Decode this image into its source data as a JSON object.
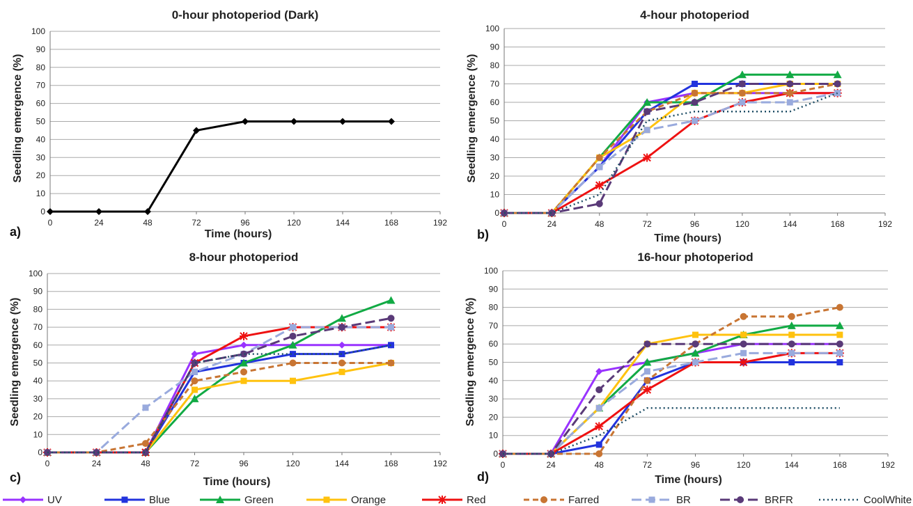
{
  "legend": {
    "items": [
      {
        "name": "UV",
        "color": "#9933ff",
        "dash": "solid",
        "marker": "diamond"
      },
      {
        "name": "Blue",
        "color": "#2233dd",
        "dash": "solid",
        "marker": "square"
      },
      {
        "name": "Green",
        "color": "#11aa44",
        "dash": "solid",
        "marker": "triangle"
      },
      {
        "name": "Orange",
        "color": "#ffc20e",
        "dash": "solid",
        "marker": "square"
      },
      {
        "name": "Red",
        "color": "#ee1111",
        "dash": "solid",
        "marker": "star"
      },
      {
        "name": "Farred",
        "color": "#c87533",
        "dash": "dash",
        "marker": "circle"
      },
      {
        "name": "BR",
        "color": "#99aadd",
        "dash": "longdash",
        "marker": "square"
      },
      {
        "name": "BRFR",
        "color": "#5a3a78",
        "dash": "longdash",
        "marker": "circle"
      },
      {
        "name": "CoolWhite",
        "color": "#1f4e66",
        "dash": "dot",
        "marker": "none"
      }
    ]
  },
  "chart_data": [
    {
      "type": "line",
      "panel": "a)",
      "title": "0-hour photoperiod (Dark)",
      "xlabel": "Time (hours)",
      "ylabel": "Seedling emergence (%)",
      "xlim": [
        0,
        192
      ],
      "ylim": [
        0,
        100
      ],
      "xticks": [
        0,
        24,
        48,
        72,
        96,
        120,
        144,
        168,
        192
      ],
      "yticks": [
        0,
        10,
        20,
        30,
        40,
        50,
        60,
        70,
        80,
        90,
        100
      ],
      "grid": true,
      "x": [
        0,
        24,
        48,
        72,
        96,
        120,
        144,
        168
      ],
      "series": [
        {
          "color": "#000000",
          "dash": "solid",
          "marker": "diamond",
          "values": [
            0,
            0,
            0,
            45,
            50,
            50,
            50,
            50
          ]
        }
      ]
    },
    {
      "type": "line",
      "panel": "b)",
      "title": "4-hour photoperiod",
      "xlabel": "Time (hours)",
      "ylabel": "Seedling emergence (%)",
      "xlim": [
        0,
        192
      ],
      "ylim": [
        0,
        100
      ],
      "xticks": [
        0,
        24,
        48,
        72,
        96,
        120,
        144,
        168,
        192
      ],
      "yticks": [
        0,
        10,
        20,
        30,
        40,
        50,
        60,
        70,
        80,
        90,
        100
      ],
      "grid": true,
      "x": [
        0,
        24,
        48,
        72,
        96,
        120,
        144,
        168
      ],
      "series": [
        {
          "name": "UV",
          "values": [
            0,
            0,
            25,
            60,
            65,
            65,
            65,
            65
          ]
        },
        {
          "name": "Blue",
          "values": [
            0,
            0,
            25,
            55,
            70,
            70,
            70,
            70
          ]
        },
        {
          "name": "Green",
          "values": [
            0,
            0,
            30,
            60,
            60,
            75,
            75,
            75
          ]
        },
        {
          "name": "Orange",
          "values": [
            0,
            0,
            30,
            45,
            65,
            65,
            70,
            70
          ]
        },
        {
          "name": "Red",
          "values": [
            0,
            0,
            15,
            30,
            50,
            60,
            65,
            65
          ]
        },
        {
          "name": "Farred",
          "values": [
            0,
            0,
            30,
            55,
            65,
            65,
            65,
            70
          ]
        },
        {
          "name": "BR",
          "values": [
            0,
            0,
            25,
            45,
            50,
            60,
            60,
            65
          ]
        },
        {
          "name": "BRFR",
          "values": [
            0,
            0,
            5,
            55,
            60,
            70,
            70,
            70
          ]
        },
        {
          "name": "CoolWhite",
          "values": [
            0,
            0,
            10,
            50,
            55,
            55,
            55,
            65
          ]
        }
      ]
    },
    {
      "type": "line",
      "panel": "c)",
      "title": "8-hour photoperiod",
      "xlabel": "Time (hours)",
      "ylabel": "Seedling emergence (%)",
      "xlim": [
        0,
        192
      ],
      "ylim": [
        0,
        100
      ],
      "xticks": [
        0,
        24,
        48,
        72,
        96,
        120,
        144,
        168,
        192
      ],
      "yticks": [
        0,
        10,
        20,
        30,
        40,
        50,
        60,
        70,
        80,
        90,
        100
      ],
      "grid": true,
      "x": [
        0,
        24,
        48,
        72,
        96,
        120,
        144,
        168
      ],
      "series": [
        {
          "name": "UV",
          "values": [
            0,
            0,
            0,
            55,
            60,
            60,
            60,
            60
          ]
        },
        {
          "name": "Blue",
          "values": [
            0,
            0,
            0,
            45,
            50,
            55,
            55,
            60
          ]
        },
        {
          "name": "Green",
          "values": [
            0,
            0,
            0,
            30,
            50,
            60,
            75,
            85
          ]
        },
        {
          "name": "Orange",
          "values": [
            0,
            0,
            0,
            35,
            40,
            40,
            45,
            50
          ]
        },
        {
          "name": "Red",
          "values": [
            0,
            0,
            0,
            50,
            65,
            70,
            70,
            70
          ]
        },
        {
          "name": "Farred",
          "values": [
            0,
            0,
            5,
            40,
            45,
            50,
            50,
            50
          ]
        },
        {
          "name": "BR",
          "values": [
            0,
            0,
            25,
            45,
            55,
            70,
            70,
            70
          ]
        },
        {
          "name": "BRFR",
          "values": [
            0,
            0,
            0,
            50,
            55,
            65,
            70,
            75
          ]
        },
        {
          "name": "CoolWhite",
          "values": [
            0,
            0,
            0,
            50,
            55,
            55,
            55,
            60
          ]
        }
      ]
    },
    {
      "type": "line",
      "panel": "d)",
      "title": "16-hour photoperiod",
      "xlabel": "Time (hours)",
      "ylabel": "Seedling emergence (%)",
      "xlim": [
        0,
        192
      ],
      "ylim": [
        0,
        100
      ],
      "xticks": [
        0,
        24,
        48,
        72,
        96,
        120,
        144,
        168,
        192
      ],
      "yticks": [
        0,
        10,
        20,
        30,
        40,
        50,
        60,
        70,
        80,
        90,
        100
      ],
      "grid": true,
      "x": [
        0,
        24,
        48,
        72,
        96,
        120,
        144,
        168
      ],
      "series": [
        {
          "name": "UV",
          "values": [
            0,
            0,
            45,
            50,
            55,
            60,
            60,
            60
          ]
        },
        {
          "name": "Blue",
          "values": [
            0,
            0,
            5,
            40,
            50,
            50,
            50,
            50
          ]
        },
        {
          "name": "Green",
          "values": [
            0,
            0,
            25,
            50,
            55,
            65,
            70,
            70
          ]
        },
        {
          "name": "Orange",
          "values": [
            0,
            0,
            25,
            60,
            65,
            65,
            65,
            65
          ]
        },
        {
          "name": "Red",
          "values": [
            0,
            0,
            15,
            35,
            50,
            50,
            55,
            55
          ]
        },
        {
          "name": "Farred",
          "values": [
            0,
            0,
            0,
            40,
            60,
            75,
            75,
            80
          ]
        },
        {
          "name": "BR",
          "values": [
            0,
            0,
            25,
            45,
            50,
            55,
            55,
            55
          ]
        },
        {
          "name": "BRFR",
          "values": [
            0,
            0,
            35,
            60,
            60,
            60,
            60,
            60
          ]
        },
        {
          "name": "CoolWhite",
          "values": [
            0,
            0,
            10,
            25,
            25,
            25,
            25,
            25
          ]
        }
      ]
    }
  ]
}
